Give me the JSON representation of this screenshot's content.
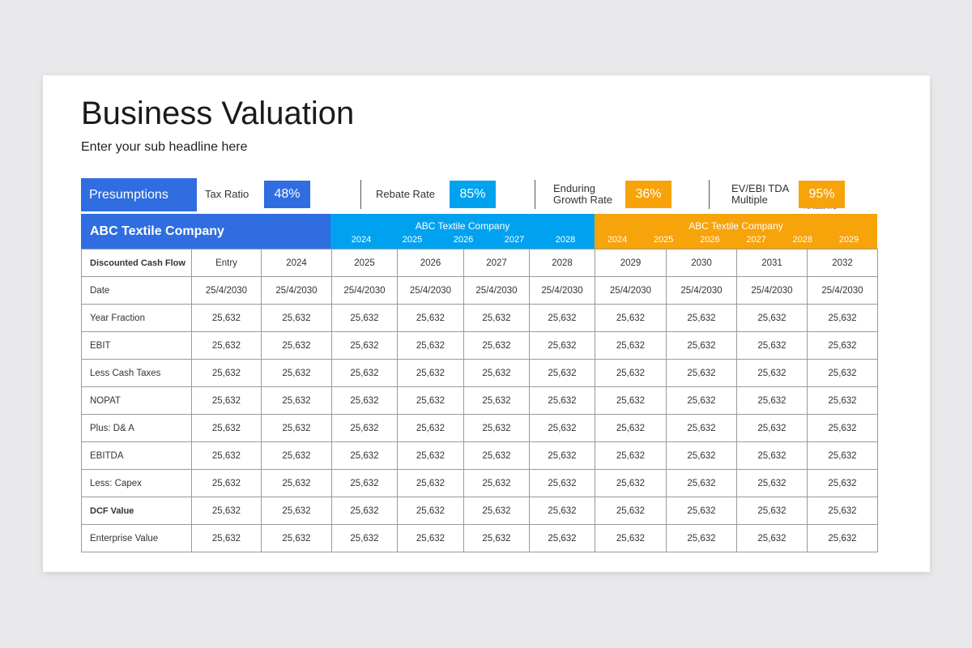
{
  "header": {
    "title": "Business Valuation",
    "subtitle": "Enter your sub headline here"
  },
  "presumptions": {
    "label": "Presumptions",
    "items": [
      {
        "label": "Tax Ratio",
        "value": "48%"
      },
      {
        "label": "Rebate Rate",
        "value": "85%"
      },
      {
        "label": "Enduring Growth Rate",
        "value": "36%"
      },
      {
        "label": "EV/EBI TDA Multiple",
        "value": "95%"
      }
    ],
    "note": "All value in $"
  },
  "bands": [
    {
      "title": "ABC Textile Company"
    },
    {
      "title": "ABC Textile Company",
      "years": [
        "2024",
        "2025",
        "2026",
        "2027",
        "2028"
      ]
    },
    {
      "title": "ABC Textile Company",
      "years": [
        "2024",
        "2025",
        "2026",
        "2027",
        "2028",
        "2029"
      ]
    }
  ],
  "table": {
    "rows": [
      [
        "Discounted Cash Flow",
        "Entry",
        "2024",
        "2025",
        "2026",
        "2027",
        "2028",
        "2029",
        "2030",
        "2031",
        "2032"
      ],
      [
        "Date",
        "25/4/2030",
        "25/4/2030",
        "25/4/2030",
        "25/4/2030",
        "25/4/2030",
        "25/4/2030",
        "25/4/2030",
        "25/4/2030",
        "25/4/2030",
        "25/4/2030"
      ],
      [
        "Year Fraction",
        "25,632",
        "25,632",
        "25,632",
        "25,632",
        "25,632",
        "25,632",
        "25,632",
        "25,632",
        "25,632",
        "25,632"
      ],
      [
        "EBIT",
        "25,632",
        "25,632",
        "25,632",
        "25,632",
        "25,632",
        "25,632",
        "25,632",
        "25,632",
        "25,632",
        "25,632"
      ],
      [
        "Less Cash Taxes",
        "25,632",
        "25,632",
        "25,632",
        "25,632",
        "25,632",
        "25,632",
        "25,632",
        "25,632",
        "25,632",
        "25,632"
      ],
      [
        "NOPAT",
        "25,632",
        "25,632",
        "25,632",
        "25,632",
        "25,632",
        "25,632",
        "25,632",
        "25,632",
        "25,632",
        "25,632"
      ],
      [
        "Plus: D& A",
        "25,632",
        "25,632",
        "25,632",
        "25,632",
        "25,632",
        "25,632",
        "25,632",
        "25,632",
        "25,632",
        "25,632"
      ],
      [
        "EBITDA",
        "25,632",
        "25,632",
        "25,632",
        "25,632",
        "25,632",
        "25,632",
        "25,632",
        "25,632",
        "25,632",
        "25,632"
      ],
      [
        "Less: Capex",
        "25,632",
        "25,632",
        "25,632",
        "25,632",
        "25,632",
        "25,632",
        "25,632",
        "25,632",
        "25,632",
        "25,632"
      ],
      [
        "DCF Value",
        "25,632",
        "25,632",
        "25,632",
        "25,632",
        "25,632",
        "25,632",
        "25,632",
        "25,632",
        "25,632",
        "25,632"
      ],
      [
        "Enterprise Value",
        "25,632",
        "25,632",
        "25,632",
        "25,632",
        "25,632",
        "25,632",
        "25,632",
        "25,632",
        "25,632",
        "25,632"
      ]
    ]
  }
}
